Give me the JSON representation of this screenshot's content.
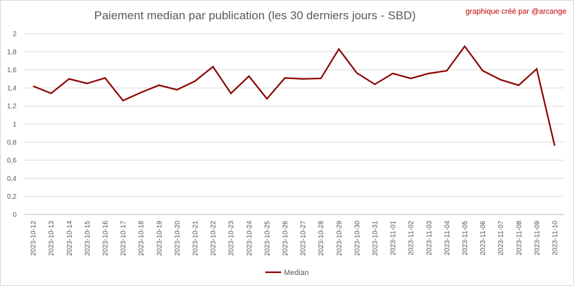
{
  "chart_data": {
    "type": "line",
    "title": "Paiement median par publication (les 30 derniers jours - SBD)",
    "annotation": "graphique créé par @arcange",
    "xlabel": "",
    "ylabel": "",
    "ylim": [
      0,
      2
    ],
    "yticks": [
      "0",
      "0,2",
      "0,4",
      "0,6",
      "0,8",
      "1",
      "1,2",
      "1,4",
      "1,6",
      "1,8",
      "2"
    ],
    "grid": true,
    "legend_position": "bottom",
    "categories": [
      "2023-10-12",
      "2023-10-13",
      "2023-10-14",
      "2023-10-15",
      "2023-10-16",
      "2023-10-17",
      "2023-10-18",
      "2023-10-19",
      "2023-10-20",
      "2023-10-21",
      "2023-10-22",
      "2023-10-23",
      "2023-10-24",
      "2023-10-25",
      "2023-10-26",
      "2023-10-27",
      "2023-10-28",
      "2023-10-29",
      "2023-10-30",
      "2023-10-31",
      "2023-11-01",
      "2023-11-02",
      "2023-11-03",
      "2023-11-04",
      "2023-11-05",
      "2023-11-06",
      "2023-11-07",
      "2023-11-08",
      "2023-11-09",
      "2023-11-10"
    ],
    "series": [
      {
        "name": "Median",
        "color": "#8b0000",
        "values": [
          1.42,
          1.34,
          1.5,
          1.45,
          1.51,
          1.26,
          1.35,
          1.43,
          1.38,
          1.475,
          1.635,
          1.34,
          1.53,
          1.28,
          1.51,
          1.5,
          1.505,
          1.83,
          1.565,
          1.44,
          1.56,
          1.505,
          1.56,
          1.59,
          1.86,
          1.59,
          1.49,
          1.43,
          1.61,
          0.76
        ]
      }
    ]
  }
}
